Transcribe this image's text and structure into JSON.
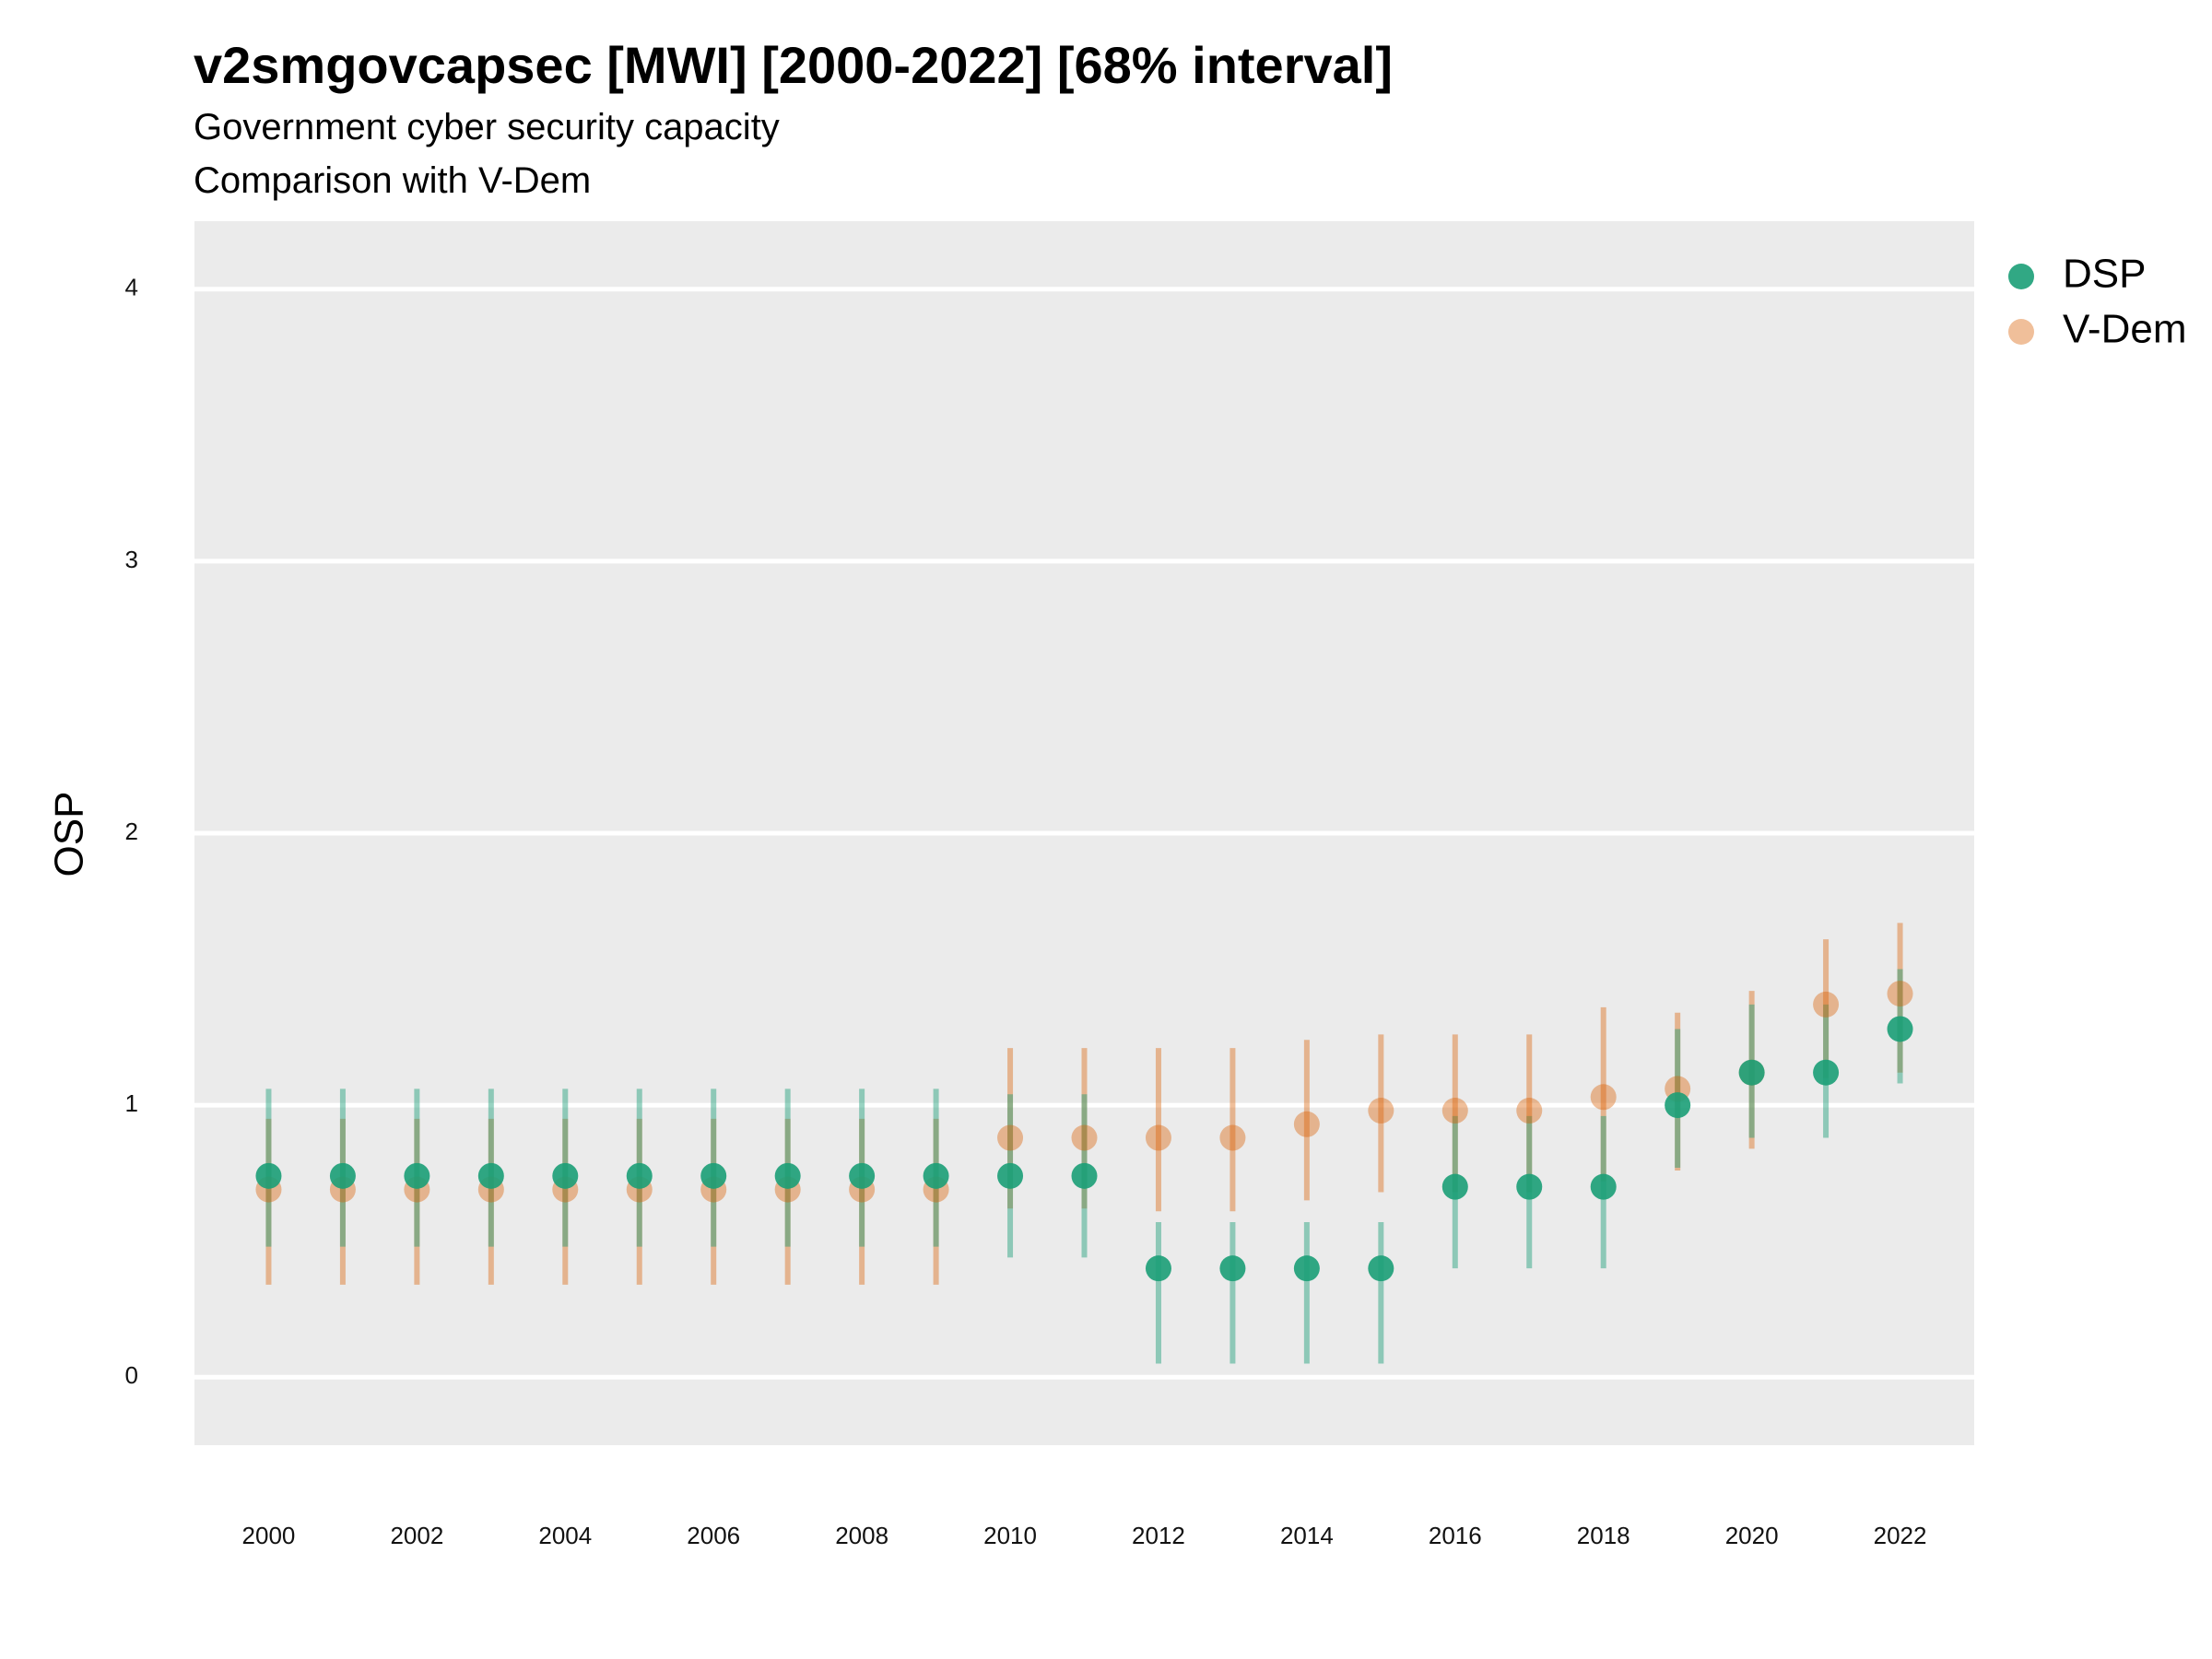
{
  "chart_data": {
    "type": "scatter",
    "title": "v2smgovcapsec [MWI] [2000-2022] [68% interval]",
    "subtitle_lines": [
      "Government cyber security capacity",
      "Comparison with V-Dem"
    ],
    "xlabel": "",
    "ylabel": "OSP",
    "ylim": [
      -0.25,
      4.25
    ],
    "xlim": [
      1999,
      2023
    ],
    "y_ticks": [
      0,
      1,
      2,
      3,
      4
    ],
    "x_ticks": [
      2000,
      2002,
      2004,
      2006,
      2008,
      2010,
      2012,
      2014,
      2016,
      2018,
      2020,
      2022
    ],
    "grid": "horizontal major lines",
    "legend_position": "right",
    "x": [
      2000,
      2001,
      2002,
      2003,
      2004,
      2005,
      2006,
      2007,
      2008,
      2009,
      2010,
      2011,
      2012,
      2013,
      2014,
      2015,
      2016,
      2017,
      2018,
      2019,
      2020,
      2021,
      2022
    ],
    "series": [
      {
        "name": "DSP",
        "color": "#1b9e77",
        "values": [
          0.74,
          0.74,
          0.74,
          0.74,
          0.74,
          0.74,
          0.74,
          0.74,
          0.74,
          0.74,
          0.74,
          0.74,
          0.4,
          0.4,
          0.4,
          0.4,
          0.7,
          0.7,
          0.7,
          1.0,
          1.12,
          1.12,
          1.28
        ],
        "lower": [
          0.48,
          0.48,
          0.48,
          0.48,
          0.48,
          0.48,
          0.48,
          0.48,
          0.48,
          0.48,
          0.44,
          0.44,
          0.05,
          0.05,
          0.05,
          0.05,
          0.4,
          0.4,
          0.4,
          0.77,
          0.88,
          0.88,
          1.08
        ],
        "upper": [
          1.06,
          1.06,
          1.06,
          1.06,
          1.06,
          1.06,
          1.06,
          1.06,
          1.06,
          1.06,
          1.04,
          1.04,
          0.57,
          0.57,
          0.57,
          0.57,
          0.96,
          0.96,
          0.96,
          1.28,
          1.37,
          1.37,
          1.5
        ]
      },
      {
        "name": "V-Dem",
        "color": "#d95f02",
        "values": [
          0.69,
          0.69,
          0.69,
          0.69,
          0.69,
          0.69,
          0.69,
          0.69,
          0.69,
          0.69,
          0.88,
          0.88,
          0.88,
          0.88,
          0.93,
          0.98,
          0.98,
          0.98,
          1.03,
          1.06,
          1.12,
          1.37,
          1.41
        ],
        "lower": [
          0.34,
          0.34,
          0.34,
          0.34,
          0.34,
          0.34,
          0.34,
          0.34,
          0.34,
          0.34,
          0.62,
          0.62,
          0.61,
          0.61,
          0.65,
          0.68,
          0.68,
          0.68,
          0.72,
          0.76,
          0.84,
          1.1,
          1.12
        ],
        "upper": [
          0.95,
          0.95,
          0.95,
          0.95,
          0.95,
          0.95,
          0.95,
          0.95,
          0.95,
          0.95,
          1.21,
          1.21,
          1.21,
          1.21,
          1.24,
          1.26,
          1.26,
          1.26,
          1.36,
          1.34,
          1.42,
          1.61,
          1.67
        ]
      }
    ]
  }
}
